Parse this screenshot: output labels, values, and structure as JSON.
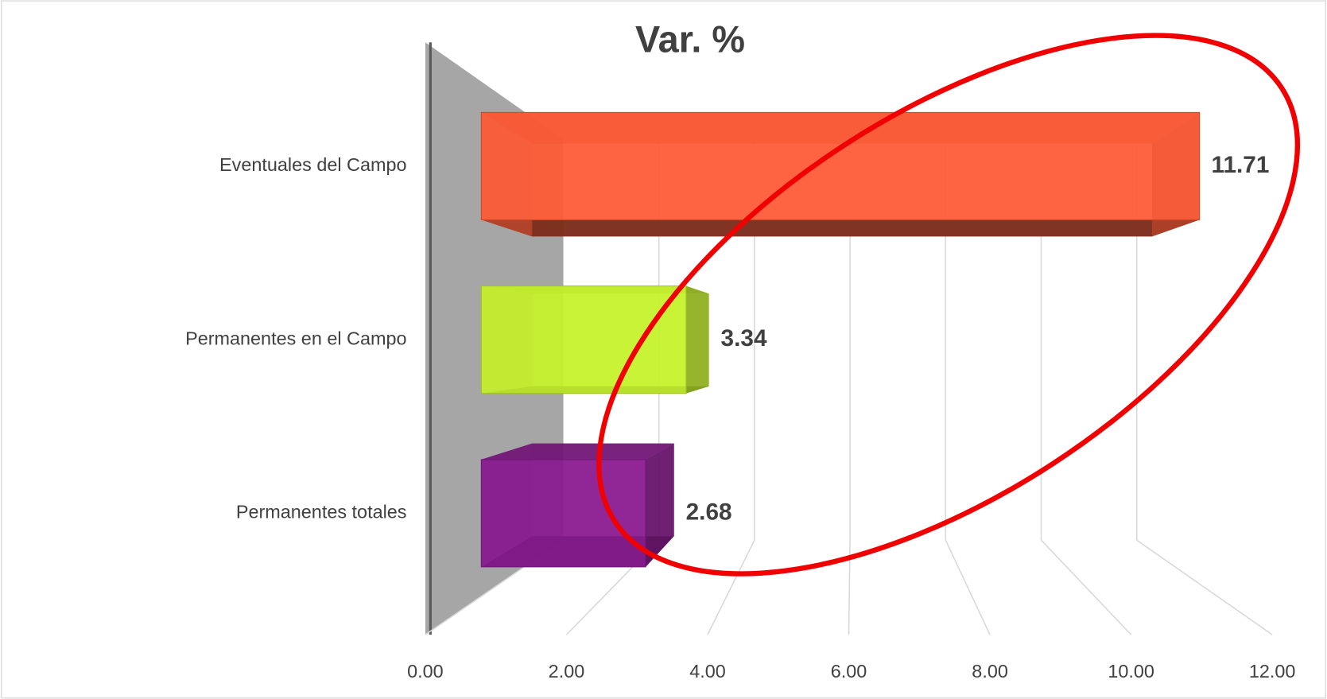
{
  "chart_data": {
    "type": "bar3d",
    "title": "Var. %",
    "categories": [
      "Eventuales del Campo",
      "Permanentes en el Campo",
      "Permanentes totales"
    ],
    "series": [
      {
        "name": "Var. %",
        "colors": [
          "#ff5a36",
          "#c6f22a",
          "#8a1a90"
        ],
        "values": [
          11.71,
          3.34,
          2.68
        ]
      }
    ],
    "xlim": [
      0,
      12
    ],
    "xticks": [
      {
        "value": 0,
        "label": "0.00"
      },
      {
        "value": 2,
        "label": "2.00"
      },
      {
        "value": 4,
        "label": "4.00"
      },
      {
        "value": 6,
        "label": "6.00"
      },
      {
        "value": 8,
        "label": "8.00"
      },
      {
        "value": 10,
        "label": "10.00"
      },
      {
        "value": 12,
        "label": "12.00"
      }
    ],
    "grid": true
  }
}
